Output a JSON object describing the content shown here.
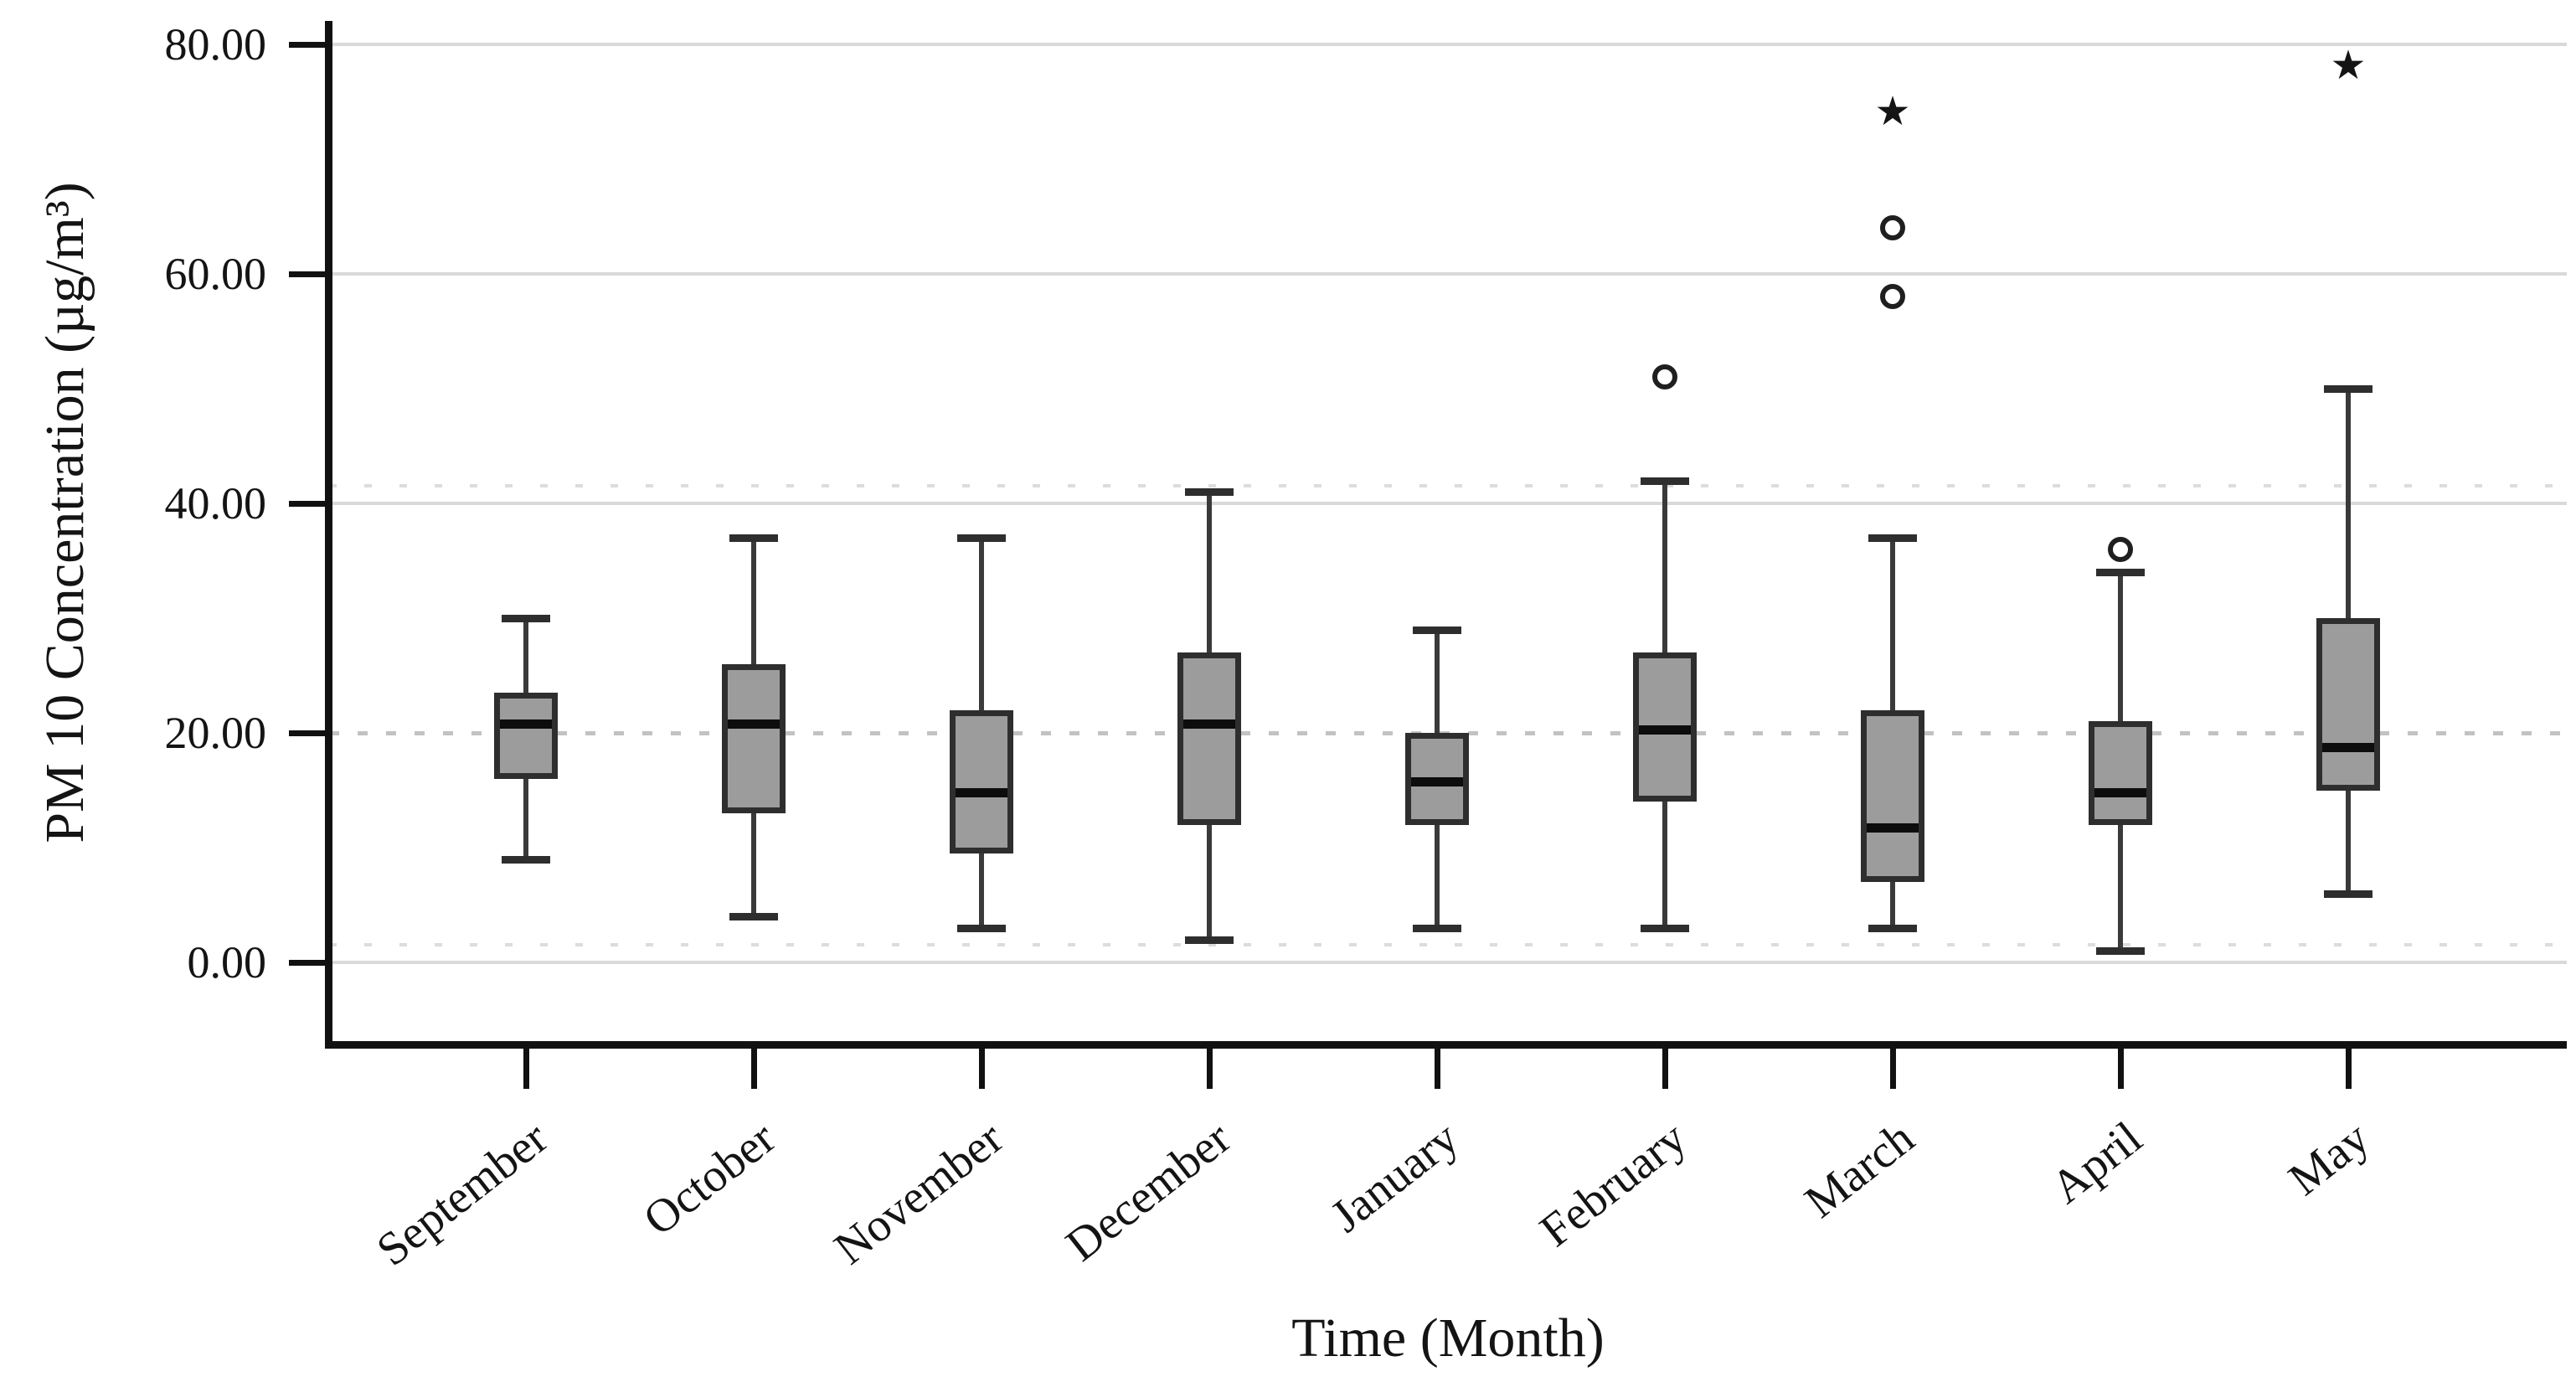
{
  "chart_data": {
    "type": "boxplot",
    "title": "",
    "xlabel": "Time (Month)",
    "ylabel": "PM 10 Concentration (µg/m³)",
    "categories": [
      "September",
      "October",
      "November",
      "December",
      "January",
      "February",
      "March",
      "April",
      "May"
    ],
    "y_ticks": [
      {
        "label": "80.00",
        "value": 80
      },
      {
        "label": "60.00",
        "value": 60
      },
      {
        "label": "40.00",
        "value": 40
      },
      {
        "label": "20.00",
        "value": 20
      },
      {
        "label": "0.00",
        "value": 0
      }
    ],
    "ylim": [
      -7,
      82
    ],
    "grid": {
      "solid_at": [
        80,
        60,
        40,
        0
      ],
      "dotted_at": [
        20
      ],
      "faint_dotted_at": [
        41.5,
        1.5
      ],
      "legend_position": "none"
    },
    "series": [
      {
        "category": "September",
        "whisker_low": 9,
        "q1": 16,
        "median": 21,
        "q3": 23.5,
        "whisker_high": 30,
        "outliers": []
      },
      {
        "category": "October",
        "whisker_low": 4,
        "q1": 13,
        "median": 21,
        "q3": 26,
        "whisker_high": 37,
        "outliers": []
      },
      {
        "category": "November",
        "whisker_low": 3,
        "q1": 9.5,
        "median": 15,
        "q3": 22,
        "whisker_high": 37,
        "outliers": []
      },
      {
        "category": "December",
        "whisker_low": 2,
        "q1": 12,
        "median": 21,
        "q3": 27,
        "whisker_high": 41,
        "outliers": []
      },
      {
        "category": "January",
        "whisker_low": 3,
        "q1": 12,
        "median": 16,
        "q3": 20,
        "whisker_high": 29,
        "outliers": []
      },
      {
        "category": "February",
        "whisker_low": 3,
        "q1": 14,
        "median": 20.5,
        "q3": 27,
        "whisker_high": 42,
        "outliers": [
          {
            "value": 51,
            "marker": "circle"
          }
        ]
      },
      {
        "category": "March",
        "whisker_low": 3,
        "q1": 7,
        "median": 12,
        "q3": 22,
        "whisker_high": 37,
        "outliers": [
          {
            "value": 58,
            "marker": "circle"
          },
          {
            "value": 64,
            "marker": "circle"
          },
          {
            "value": 74,
            "marker": "star"
          }
        ]
      },
      {
        "category": "April",
        "whisker_low": 1,
        "q1": 12,
        "median": 15,
        "q3": 21,
        "whisker_high": 34,
        "outliers": [
          {
            "value": 36,
            "marker": "circle"
          }
        ]
      },
      {
        "category": "May",
        "whisker_low": 6,
        "q1": 15,
        "median": 19,
        "q3": 30,
        "whisker_high": 50,
        "outliers": [
          {
            "value": 78,
            "marker": "star"
          }
        ]
      }
    ]
  },
  "colors": {
    "box_fill": "#9c9c9c",
    "box_border": "#2e2e2e",
    "median": "#0d0d0d",
    "whisker": "#3a3a3a",
    "axis": "#111111",
    "grid_solid": "#d9d9d9",
    "grid_dotted": "#c2c2c2",
    "text": "#141414",
    "background": "#ffffff"
  }
}
